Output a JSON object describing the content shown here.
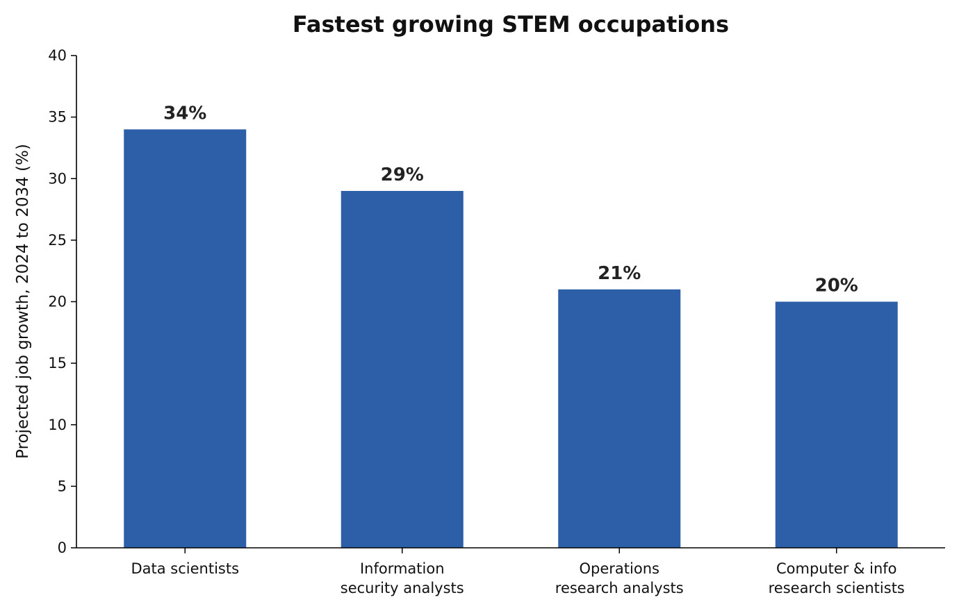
{
  "chart_data": {
    "type": "bar",
    "title": "Fastest growing STEM occupations",
    "xlabel": "",
    "ylabel": "Projected job growth, 2024 to 2034 (%)",
    "categories": [
      [
        "Data scientists"
      ],
      [
        "Information",
        "security analysts"
      ],
      [
        "Operations",
        "research analysts"
      ],
      [
        "Computer & info",
        "research scientists"
      ]
    ],
    "values": [
      34,
      29,
      21,
      20
    ],
    "value_labels": [
      "34%",
      "29%",
      "21%",
      "20%"
    ],
    "ylim": [
      0,
      40
    ],
    "yticks": [
      "0",
      "5",
      "10",
      "15",
      "20",
      "25",
      "30",
      "35",
      "40"
    ],
    "bar_color": "#2d5fa9",
    "grid": false,
    "legend": "none"
  }
}
